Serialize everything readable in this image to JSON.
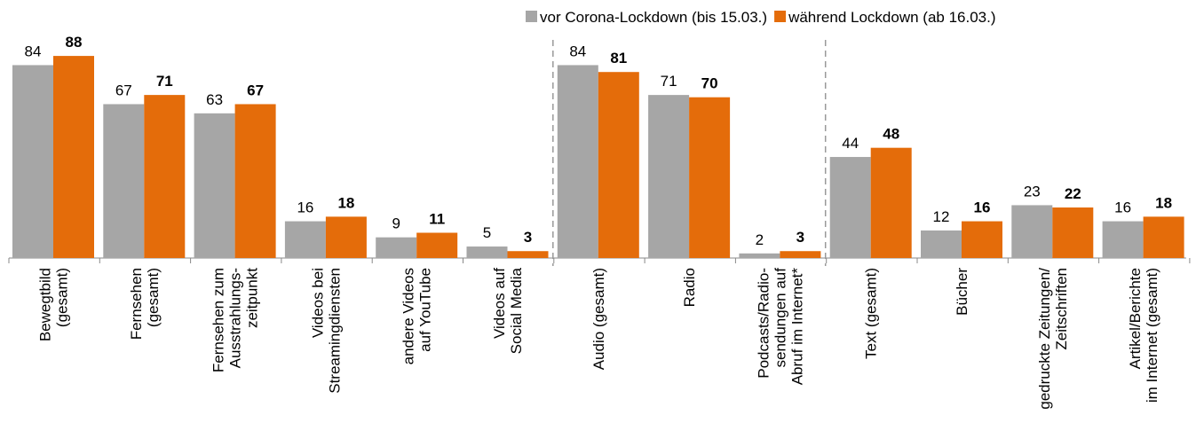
{
  "chart_data": {
    "type": "bar",
    "categories": [
      "Bewegtbild\n(gesamt)",
      "Fernsehen\n(gesamt)",
      "Fernsehen zum\nAusstrahlungs-\nzeitpunkt",
      "Videos bei\nStreamingdiensten",
      "andere Videos\nauf YouTube",
      "Videos auf\nSocial Media",
      "Audio (gesamt)",
      "Radio",
      "Podcasts/Radio-\nsendungen auf\nAbruf im Internet*",
      "Text (gesamt)",
      "Bücher",
      "gedruckte Zeitungen/\nZeitschriften",
      "Artikel/Berichte\nim Internet (gesamt)"
    ],
    "series": [
      {
        "name": "vor Corona-Lockdown (bis 15.03.)",
        "color": "#a6a6a6",
        "values": [
          84,
          67,
          63,
          16,
          9,
          5,
          84,
          71,
          2,
          44,
          12,
          23,
          16
        ]
      },
      {
        "name": "während Lockdown (ab 16.03.)",
        "color": "#e46c0a",
        "values": [
          88,
          71,
          67,
          18,
          11,
          3,
          81,
          70,
          3,
          48,
          16,
          22,
          18
        ]
      }
    ],
    "legend": "top-right"
  }
}
